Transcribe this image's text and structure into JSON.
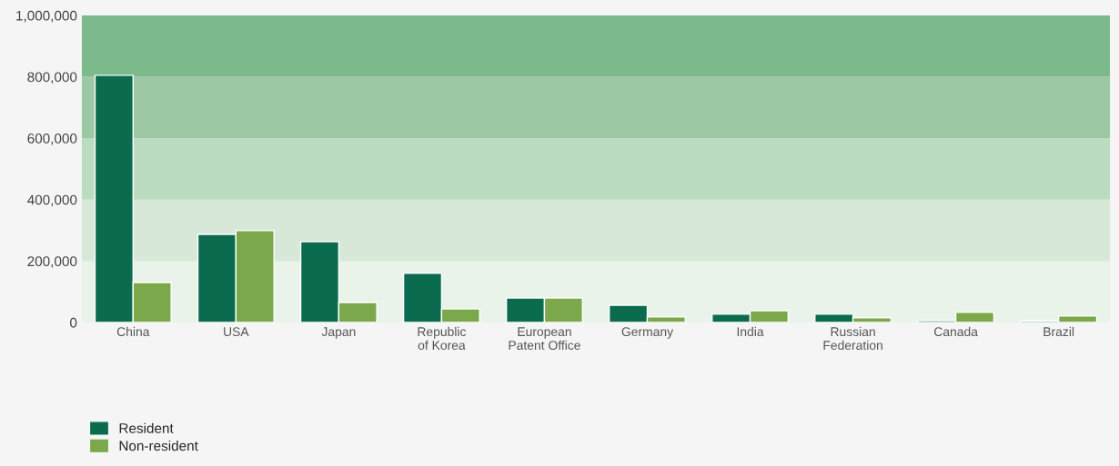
{
  "chart_data": {
    "type": "bar",
    "categories": [
      "China",
      "USA",
      "Japan",
      "Republic\nof Korea",
      "European\nPatent Office",
      "Germany",
      "India",
      "Russian\nFederation",
      "Canada",
      "Brazil"
    ],
    "series": [
      {
        "name": "Resident",
        "color": "#0b6b4e",
        "values": [
          805000,
          287000,
          263000,
          160000,
          80000,
          56000,
          27000,
          27000,
          6000,
          5000
        ]
      },
      {
        "name": "Non-resident",
        "color": "#7aa84a",
        "values": [
          130000,
          299000,
          65000,
          44000,
          80000,
          18000,
          38000,
          15000,
          33000,
          21000
        ]
      }
    ],
    "ylim": [
      0,
      1000000
    ],
    "yticks": [
      0,
      {
        "value": 200000,
        "label": "200,000"
      },
      {
        "value": 400000,
        "label": "400,000"
      },
      {
        "value": 600000,
        "label": "600,000"
      },
      {
        "value": 800000,
        "label": "800,000"
      },
      {
        "value": 1000000,
        "label": "1,000,000"
      }
    ],
    "bands": [
      {
        "axis": "y",
        "from": 0,
        "to": 200000,
        "color": "#eaf3ea"
      },
      {
        "axis": "y",
        "from": 200000,
        "to": 400000,
        "color": "#d7e8d9"
      },
      {
        "axis": "y",
        "from": 400000,
        "to": 600000,
        "color": "#bcdcc2"
      },
      {
        "axis": "y",
        "from": 600000,
        "to": 800000,
        "color": "#9cc9a3"
      },
      {
        "axis": "y",
        "from": 800000,
        "to": 1000000,
        "color": "#7cba8b"
      }
    ],
    "grid": false,
    "legend": "bottom left"
  }
}
